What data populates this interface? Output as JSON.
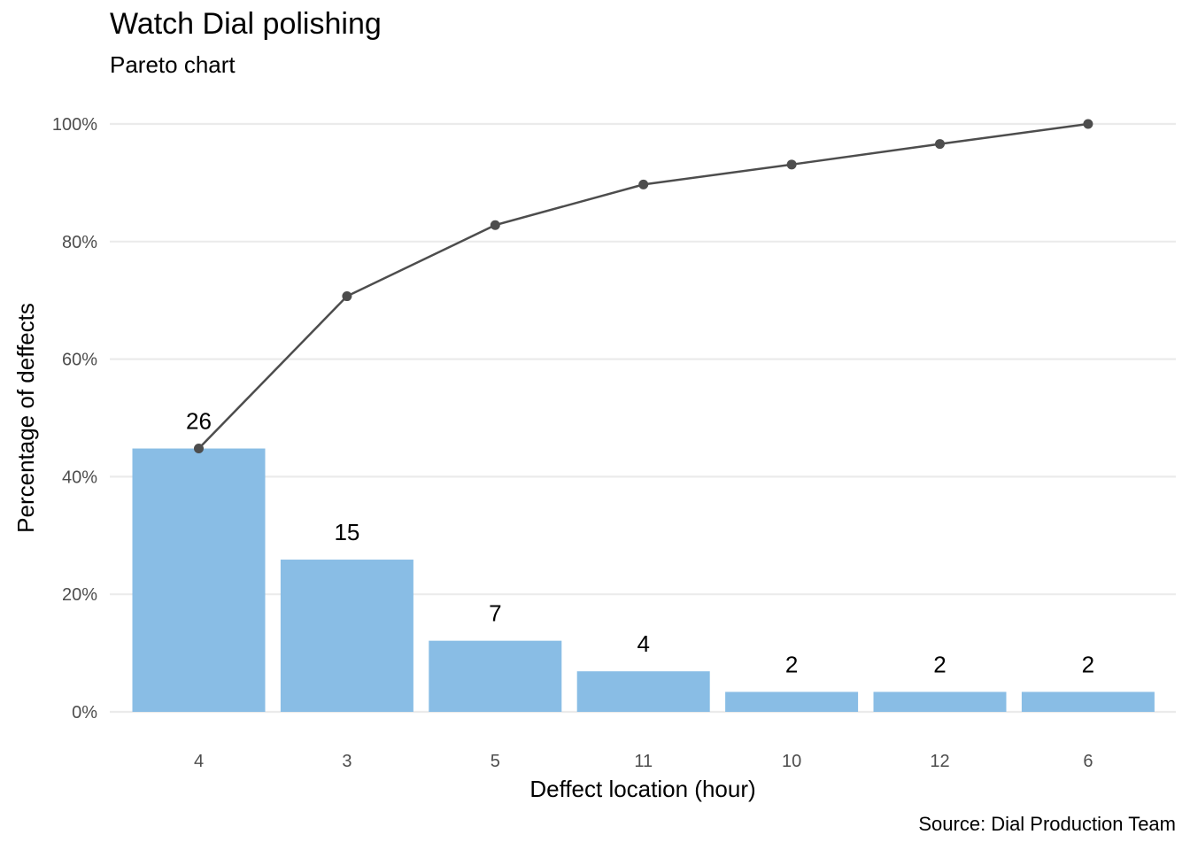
{
  "chart_data": {
    "type": "bar",
    "title": "Watch Dial polishing",
    "subtitle": "Pareto chart",
    "caption": "Source: Dial Production Team",
    "xlabel": "Deffect location (hour)",
    "ylabel": "Percentage of deffects",
    "categories": [
      "4",
      "3",
      "5",
      "11",
      "10",
      "12",
      "6"
    ],
    "counts": [
      26,
      15,
      7,
      4,
      2,
      2,
      2
    ],
    "bar_percent": [
      44.8,
      25.9,
      12.1,
      6.9,
      3.4,
      3.4,
      3.4
    ],
    "cumulative_percent": [
      44.8,
      70.7,
      82.8,
      89.7,
      93.1,
      96.6,
      100.0
    ],
    "ylim": [
      0,
      100
    ],
    "yticks": [
      "0%",
      "20%",
      "40%",
      "60%",
      "80%",
      "100%"
    ],
    "ytick_values": [
      0,
      20,
      40,
      60,
      80,
      100
    ],
    "grid": true,
    "legend": "none",
    "colors": {
      "bar": "#89bde5",
      "line": "#4d4d4d",
      "grid": "#ebebeb"
    }
  }
}
